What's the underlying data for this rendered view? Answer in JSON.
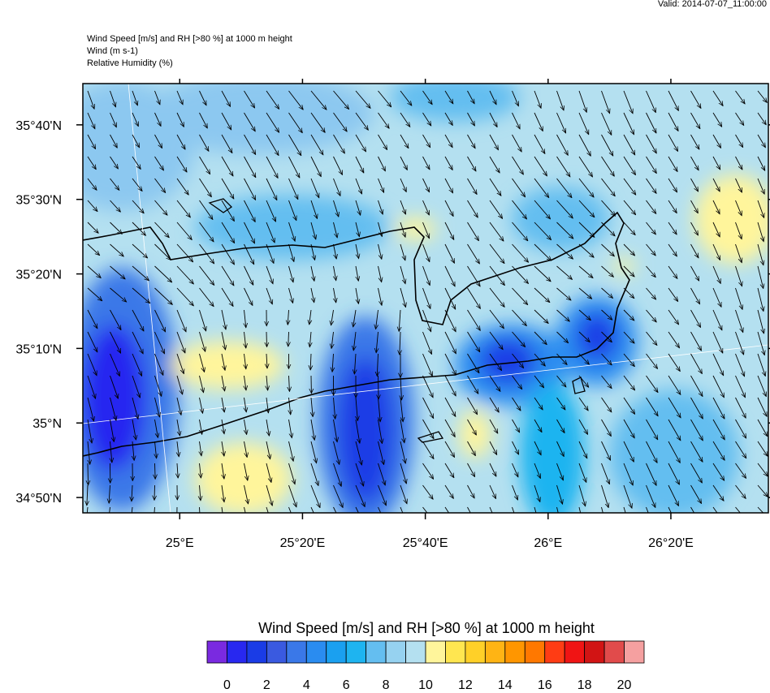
{
  "valid": "Valid: 2014-07-07_11:00:00",
  "header": [
    "Wind Speed [m/s] and RH [>80 %] at 1000 m height",
    "Wind   (m s-1)",
    "Relative Humidity   (%)"
  ],
  "map": {
    "xlim": [
      24.737,
      26.598
    ],
    "ylim": [
      34.799,
      35.759
    ],
    "xticks": [
      {
        "value": 25,
        "label": "25°E"
      },
      {
        "value": 25.3333,
        "label": "25°20'E"
      },
      {
        "value": 25.6667,
        "label": "25°40'E"
      },
      {
        "value": 26,
        "label": "26°E"
      },
      {
        "value": 26.3333,
        "label": "26°20'E"
      }
    ],
    "yticks": [
      {
        "value": 35.6667,
        "label": "35°40'N"
      },
      {
        "value": 35.5,
        "label": "35°30'N"
      },
      {
        "value": 35.3333,
        "label": "35°20'N"
      },
      {
        "value": 35.1667,
        "label": "35°10'N"
      },
      {
        "value": 35,
        "label": "35°N"
      },
      {
        "value": 34.8333,
        "label": "34°50'N"
      }
    ]
  },
  "colorbar": {
    "title": "Wind Speed [m/s] and RH [>80 %] at 1000 m height",
    "levels": [
      0,
      1,
      2,
      3,
      4,
      5,
      6,
      7,
      8,
      9,
      10,
      11,
      12,
      13,
      14,
      15,
      16,
      17,
      18,
      19,
      20
    ],
    "labels": [
      {
        "value": 0,
        "label": "0"
      },
      {
        "value": 2,
        "label": "2"
      },
      {
        "value": 4,
        "label": "4"
      },
      {
        "value": 6,
        "label": "6"
      },
      {
        "value": 8,
        "label": "8"
      },
      {
        "value": 10,
        "label": "10"
      },
      {
        "value": 12,
        "label": "12"
      },
      {
        "value": 14,
        "label": "14"
      },
      {
        "value": 16,
        "label": "16"
      },
      {
        "value": 18,
        "label": "18"
      },
      {
        "value": 20,
        "label": "20"
      }
    ],
    "colors": [
      "#7a2ae0",
      "#2828f0",
      "#1a3ce6",
      "#3a5ae0",
      "#3a78e8",
      "#2a8cf0",
      "#1aa0f0",
      "#1eb4f0",
      "#64bef0",
      "#96d2f0",
      "#b4e0f0",
      "#fff59b",
      "#ffe650",
      "#ffd028",
      "#ffb414",
      "#ff9600",
      "#ff7800",
      "#ff3c14",
      "#f01414",
      "#d21414",
      "#e14b4b",
      "#f5a0a0"
    ]
  }
}
